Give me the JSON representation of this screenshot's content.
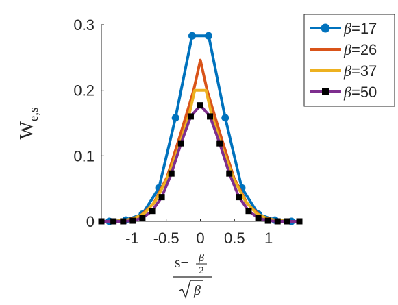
{
  "chart_data": {
    "type": "line",
    "xlabel": {
      "numerator": "s−",
      "frac_top": "β",
      "frac_bottom": "2",
      "denominator": "β"
    },
    "ylabel": {
      "main": "W",
      "sub": "e,s"
    },
    "xlim": [
      -1.45,
      1.45
    ],
    "ylim": [
      0,
      0.3
    ],
    "xticks": [
      -1,
      -0.5,
      0,
      0.5,
      1
    ],
    "xtick_labels": [
      "-1",
      "-0.5",
      "0",
      "0.5",
      "1"
    ],
    "yticks": [
      0,
      0.1,
      0.2,
      0.3
    ],
    "ytick_labels": [
      "0",
      "0.1",
      "0.2",
      "0.3"
    ],
    "grid": false,
    "legend_position": "top-right-outside",
    "series": [
      {
        "name": "β=17",
        "legend_symbol": "β",
        "legend_value": "=17",
        "color": "#0072BD",
        "marker": "circle",
        "x": [
          -1.455,
          -1.213,
          -0.97,
          -0.728,
          -0.485,
          -0.243,
          0.0,
          0.243,
          0.485,
          0.728,
          0.97,
          1.213,
          1.455
        ],
        "y": [
          0.0,
          0.0,
          0.002,
          0.011,
          0.051,
          0.158,
          0.283,
          0.283,
          0.158,
          0.051,
          0.011,
          0.002,
          0.0
        ],
        "x_shift": -0.121,
        "points": [
          {
            "x": -1.334,
            "y": 0.0
          },
          {
            "x": -1.092,
            "y": 0.002
          },
          {
            "x": -0.849,
            "y": 0.011
          },
          {
            "x": -0.607,
            "y": 0.051
          },
          {
            "x": -0.364,
            "y": 0.158
          },
          {
            "x": -0.121,
            "y": 0.283
          },
          {
            "x": 0.121,
            "y": 0.283
          },
          {
            "x": 0.364,
            "y": 0.158
          },
          {
            "x": 0.607,
            "y": 0.051
          },
          {
            "x": 0.849,
            "y": 0.011
          },
          {
            "x": 1.092,
            "y": 0.002
          },
          {
            "x": 1.334,
            "y": 0.0
          }
        ]
      },
      {
        "name": "β=26",
        "legend_symbol": "β",
        "legend_value": "=26",
        "color": "#D95319",
        "marker": "none",
        "points": [
          {
            "x": -1.471,
            "y": 0.0
          },
          {
            "x": -1.275,
            "y": 0.0
          },
          {
            "x": -1.079,
            "y": 0.002
          },
          {
            "x": -0.883,
            "y": 0.008
          },
          {
            "x": -0.686,
            "y": 0.027
          },
          {
            "x": -0.49,
            "y": 0.067
          },
          {
            "x": -0.294,
            "y": 0.132
          },
          {
            "x": -0.098,
            "y": 0.2
          },
          {
            "x": 0.0,
            "y": 0.246
          },
          {
            "x": 0.098,
            "y": 0.2
          },
          {
            "x": 0.294,
            "y": 0.132
          },
          {
            "x": 0.49,
            "y": 0.067
          },
          {
            "x": 0.686,
            "y": 0.027
          },
          {
            "x": 0.883,
            "y": 0.008
          },
          {
            "x": 1.079,
            "y": 0.002
          },
          {
            "x": 1.275,
            "y": 0.0
          },
          {
            "x": 1.471,
            "y": 0.0
          }
        ]
      },
      {
        "name": "β=37",
        "legend_symbol": "β",
        "legend_value": "=37",
        "color": "#EDB120",
        "marker": "none",
        "points": [
          {
            "x": -1.479,
            "y": 0.0
          },
          {
            "x": -1.315,
            "y": 0.0
          },
          {
            "x": -1.151,
            "y": 0.001
          },
          {
            "x": -0.986,
            "y": 0.004
          },
          {
            "x": -0.822,
            "y": 0.012
          },
          {
            "x": -0.658,
            "y": 0.031
          },
          {
            "x": -0.493,
            "y": 0.064
          },
          {
            "x": -0.329,
            "y": 0.109
          },
          {
            "x": -0.164,
            "y": 0.163
          },
          {
            "x": -0.082,
            "y": 0.2
          },
          {
            "x": 0.082,
            "y": 0.2
          },
          {
            "x": 0.164,
            "y": 0.163
          },
          {
            "x": 0.329,
            "y": 0.109
          },
          {
            "x": 0.493,
            "y": 0.064
          },
          {
            "x": 0.658,
            "y": 0.031
          },
          {
            "x": 0.822,
            "y": 0.012
          },
          {
            "x": 0.986,
            "y": 0.004
          },
          {
            "x": 1.151,
            "y": 0.001
          },
          {
            "x": 1.315,
            "y": 0.0
          },
          {
            "x": 1.479,
            "y": 0.0
          }
        ]
      },
      {
        "name": "β=50",
        "legend_symbol": "β",
        "legend_value": "=50",
        "color": "#7E2F8E",
        "marker": "square",
        "points": [
          {
            "x": -1.45,
            "y": 0.0
          },
          {
            "x": -1.273,
            "y": 0.0
          },
          {
            "x": -1.131,
            "y": 0.0
          },
          {
            "x": -0.99,
            "y": 0.001
          },
          {
            "x": -0.849,
            "y": 0.005
          },
          {
            "x": -0.707,
            "y": 0.016
          },
          {
            "x": -0.566,
            "y": 0.037
          },
          {
            "x": -0.424,
            "y": 0.073
          },
          {
            "x": -0.283,
            "y": 0.119
          },
          {
            "x": -0.141,
            "y": 0.16
          },
          {
            "x": 0.0,
            "y": 0.177
          },
          {
            "x": 0.141,
            "y": 0.16
          },
          {
            "x": 0.283,
            "y": 0.119
          },
          {
            "x": 0.424,
            "y": 0.073
          },
          {
            "x": 0.566,
            "y": 0.037
          },
          {
            "x": 0.707,
            "y": 0.016
          },
          {
            "x": 0.849,
            "y": 0.005
          },
          {
            "x": 0.99,
            "y": 0.001
          },
          {
            "x": 1.131,
            "y": 0.0
          },
          {
            "x": 1.273,
            "y": 0.0
          },
          {
            "x": 1.45,
            "y": 0.0
          }
        ]
      }
    ]
  }
}
